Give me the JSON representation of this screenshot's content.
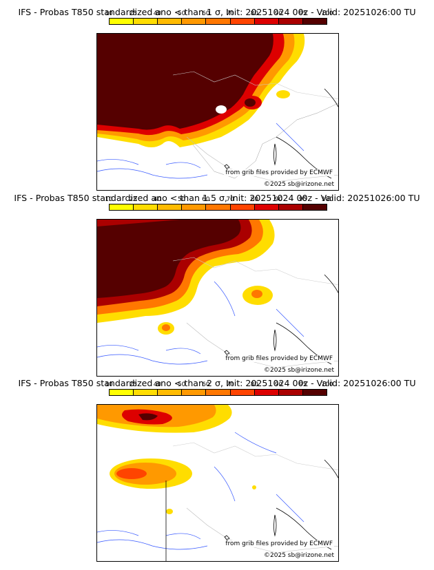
{
  "colorbar": {
    "ticks": [
      "10",
      "25",
      "40",
      "50",
      "60",
      "70",
      "80",
      "90",
      "95",
      "100"
    ],
    "colors": [
      "#ffff00",
      "#ffdd00",
      "#ffbb00",
      "#ff9900",
      "#ff7700",
      "#ff4400",
      "#dd0000",
      "#aa0000",
      "#550000"
    ]
  },
  "panels": [
    {
      "title": "IFS - Probas T850  standardized ano < than 1 σ, Init: 20251024 00z - Valid: 20251026:00 TU",
      "credit": "from grib files provided by ECMWF",
      "copyright": "©2025 sb@irizone.net"
    },
    {
      "title": "IFS - Probas T850  standardized ano < than 1.5 σ, Init: 20251024 00z - Valid: 20251026:00 TU",
      "credit": "from grib files provided by ECMWF",
      "copyright": "©2025 sb@irizone.net"
    },
    {
      "title": "IFS - Probas T850  standardized ano < than 2 σ, Init: 20251024 00z - Valid: 20251026:00 TU",
      "credit": "from grib files provided by ECMWF",
      "copyright": "©2025 sb@irizone.net"
    }
  ]
}
